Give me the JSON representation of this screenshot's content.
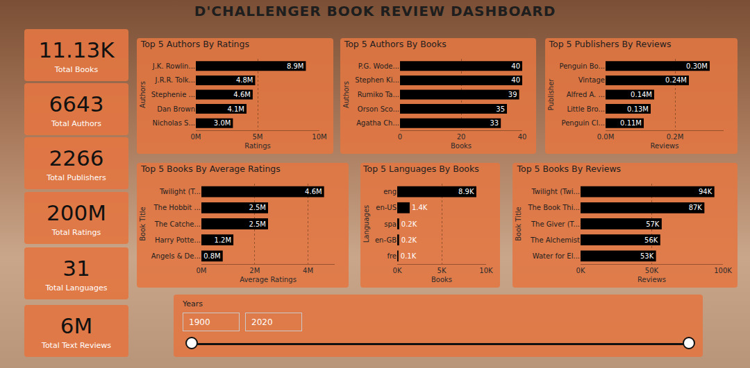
{
  "title": "D'CHALLENGER BOOK REVIEW DASHBOARD",
  "cards": [
    {
      "value": "11.13K",
      "label": "Total Books"
    },
    {
      "value": "6643",
      "label": "Total Authors"
    },
    {
      "value": "2266",
      "label": "Total Publishers"
    },
    {
      "value": "200M",
      "label": "Total Ratings"
    },
    {
      "value": "31",
      "label": "Total Languages"
    },
    {
      "value": "6M",
      "label": "Total Text Reviews"
    }
  ],
  "chart_data": [
    {
      "type": "bar",
      "orientation": "horizontal",
      "title": "Top 5 Authors By Ratings",
      "x_label": "Ratings",
      "y_label": "Authors",
      "categories": [
        "J.K. Rowlin...",
        "J.R.R. Tolk...",
        "Stephenie ...",
        "Dan Brown",
        "Nicholas S..."
      ],
      "values": [
        8900000,
        4800000,
        4600000,
        4100000,
        3000000
      ],
      "value_labels": [
        "8.9M",
        "4.8M",
        "4.6M",
        "4.1M",
        "3.0M"
      ],
      "color": "#000000",
      "xlim": [
        0,
        10000000
      ],
      "xticks": [
        {
          "value": 0,
          "label": "0M"
        },
        {
          "value": 5000000,
          "label": "5M"
        },
        {
          "value": 10000000,
          "label": "10M"
        }
      ],
      "grid": true,
      "data_labels": true
    },
    {
      "type": "bar",
      "orientation": "horizontal",
      "title": "Top 5 Authors By Books",
      "x_label": "Books",
      "y_label": "Authors",
      "categories": [
        "P.G. Wode...",
        "Stephen Ki...",
        "Rumiko Ta...",
        "Orson Sco...",
        "Agatha Ch..."
      ],
      "values": [
        40,
        40,
        39,
        35,
        33
      ],
      "color": "#000000",
      "xlim": [
        0,
        40
      ],
      "xticks": [
        0,
        20,
        40
      ],
      "grid": true,
      "data_labels": true
    },
    {
      "type": "bar",
      "orientation": "horizontal",
      "title": "Top 5 Publishers By Reviews",
      "x_label": "Reviews",
      "y_label": "Publisher",
      "categories": [
        "Penguin Bo...",
        "Vintage",
        "Alfred A. ...",
        "Little Bro...",
        "Penguin Cl..."
      ],
      "values": [
        300000,
        240000,
        140000,
        130000,
        110000
      ],
      "value_labels": [
        "0.30M",
        "0.24M",
        "0.14M",
        "0.13M",
        "0.11M"
      ],
      "color": "#000000",
      "xlim": [
        0,
        340000
      ],
      "xticks": [
        {
          "value": 0,
          "label": "0.0M"
        },
        {
          "value": 200000,
          "label": "0.2M"
        }
      ],
      "grid": true,
      "data_labels": true
    },
    {
      "type": "bar",
      "orientation": "horizontal",
      "title": "Top 5 Books By Average Ratings",
      "x_label": "Average Ratings",
      "y_label": "Book Title",
      "categories": [
        "Twilight (T...",
        "The Hobbit ...",
        "The Catche...",
        "Harry Potte...",
        "Angels & De..."
      ],
      "values": [
        4600000,
        2500000,
        2500000,
        1200000,
        800000
      ],
      "value_labels": [
        "4.6M",
        "2.5M",
        "2.5M",
        "1.2M",
        "0.8M"
      ],
      "color": "#000000",
      "xlim": [
        0,
        5000000
      ],
      "xticks": [
        {
          "value": 0,
          "label": "0M"
        },
        {
          "value": 2000000,
          "label": "2M"
        },
        {
          "value": 4000000,
          "label": "4M"
        }
      ],
      "grid": true,
      "data_labels": true
    },
    {
      "type": "bar",
      "orientation": "horizontal",
      "title": "Top 5 Languages By Books",
      "x_label": "Books",
      "y_label": "Languages",
      "categories": [
        "eng",
        "en-US",
        "spa",
        "en-GB",
        "fre"
      ],
      "values": [
        8900,
        1400,
        220,
        210,
        140
      ],
      "value_labels": [
        "8.9K",
        "1.4K",
        "0.2K",
        "0.2K",
        "0.1K"
      ],
      "color": "#000000",
      "xlim": [
        0,
        10000
      ],
      "xticks": [
        {
          "value": 0,
          "label": "0K"
        },
        {
          "value": 5000,
          "label": "5K"
        },
        {
          "value": 10000,
          "label": "10K"
        }
      ],
      "grid": true,
      "data_labels": true
    },
    {
      "type": "bar",
      "orientation": "horizontal",
      "title": "Top 5 Books By Reviews",
      "x_label": "Reviews",
      "y_label": "Book Title",
      "categories": [
        "Twilight (Twi...",
        "The Book Thi...",
        "The Giver (T...",
        "The Alchemist",
        "Water for El..."
      ],
      "values": [
        94000,
        87000,
        57000,
        56000,
        53000
      ],
      "value_labels": [
        "94K",
        "87K",
        "57K",
        "56K",
        "53K"
      ],
      "color": "#000000",
      "xlim": [
        0,
        100000
      ],
      "xticks": [
        {
          "value": 0,
          "label": "0K"
        },
        {
          "value": 50000,
          "label": "50K"
        },
        {
          "value": 100000,
          "label": "100K"
        }
      ],
      "grid": true,
      "data_labels": true
    }
  ],
  "slicer": {
    "label": "Years",
    "start": 1900,
    "end": 2020
  }
}
